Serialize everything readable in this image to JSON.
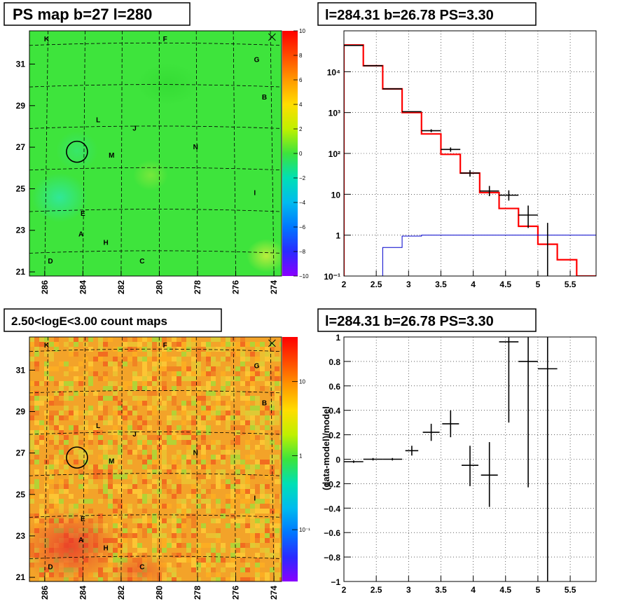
{
  "panels": {
    "ps_map": {
      "title": "PS map b=27 l=280",
      "x_ticks": [
        "286",
        "284",
        "282",
        "280",
        "278",
        "276",
        "274"
      ],
      "y_ticks": [
        "31",
        "29",
        "27",
        "25",
        "23",
        "21"
      ],
      "colorbar_ticks": [
        "10",
        "8",
        "6",
        "4",
        "2",
        "0",
        "−2",
        "−4",
        "−6",
        "−8",
        "−10"
      ],
      "source_labels": [
        "K",
        "F",
        "G",
        "B",
        "L",
        "J",
        "M",
        "N",
        "I",
        "E",
        "A",
        "H",
        "D",
        "C"
      ]
    },
    "count_map": {
      "title": "2.50<logE<3.00 count maps",
      "x_ticks": [
        "286",
        "284",
        "282",
        "280",
        "278",
        "276",
        "274"
      ],
      "y_ticks": [
        "31",
        "29",
        "27",
        "25",
        "23",
        "21"
      ],
      "colorbar_ticks": [
        "10",
        "1",
        "10⁻¹"
      ],
      "source_labels": [
        "K",
        "F",
        "G",
        "B",
        "L",
        "J",
        "M",
        "N",
        "I",
        "E",
        "A",
        "H",
        "D",
        "C"
      ]
    },
    "spectrum": {
      "title": "l=284.31 b=26.78 PS=3.30"
    },
    "residual": {
      "title": "l=284.31 b=26.78 PS=3.30",
      "ylabel": "(data-model)/model"
    }
  },
  "chart_data": [
    {
      "type": "heatmap",
      "title": "PS map b=27 l=280",
      "xlim": [
        286.8,
        273.6
      ],
      "ylim": [
        20.8,
        32.6
      ],
      "x_ticks": [
        286,
        284,
        282,
        280,
        278,
        276,
        274
      ],
      "y_ticks": [
        31,
        29,
        27,
        25,
        23,
        21
      ],
      "zlim": [
        -10,
        10
      ],
      "z_ticks": [
        10,
        8,
        6,
        4,
        2,
        0,
        -2,
        -4,
        -6,
        -8,
        -10
      ],
      "markers": [
        {
          "shape": "circle",
          "l": 284.31,
          "b": 26.78
        },
        {
          "shape": "x",
          "l": 274.1,
          "b": 32.3
        }
      ],
      "sources": [
        {
          "label": "K",
          "l": 285.9,
          "b": 32.1
        },
        {
          "label": "F",
          "l": 279.7,
          "b": 32.1
        },
        {
          "label": "G",
          "l": 274.9,
          "b": 31.1
        },
        {
          "label": "B",
          "l": 274.5,
          "b": 29.3
        },
        {
          "label": "L",
          "l": 283.2,
          "b": 28.2
        },
        {
          "label": "J",
          "l": 281.3,
          "b": 27.8
        },
        {
          "label": "M",
          "l": 282.5,
          "b": 26.5
        },
        {
          "label": "N",
          "l": 278.1,
          "b": 26.9
        },
        {
          "label": "I",
          "l": 275.0,
          "b": 24.7
        },
        {
          "label": "E",
          "l": 284.0,
          "b": 23.7
        },
        {
          "label": "A",
          "l": 284.1,
          "b": 22.7
        },
        {
          "label": "H",
          "l": 282.8,
          "b": 22.3
        },
        {
          "label": "D",
          "l": 285.7,
          "b": 21.4
        },
        {
          "label": "C",
          "l": 280.9,
          "b": 21.4
        }
      ]
    },
    {
      "type": "bar",
      "title": "l=284.31 b=26.78 PS=3.30",
      "xlim": [
        2,
        5.9
      ],
      "ylim": [
        0.1,
        100000
      ],
      "yscale": "log",
      "x_ticks": [
        2,
        2.5,
        3,
        3.5,
        4,
        4.5,
        5,
        5.5
      ],
      "y_ticks": [
        {
          "value": 0.1,
          "label": "10⁻¹"
        },
        {
          "value": 1,
          "label": "1"
        },
        {
          "value": 10,
          "label": "10"
        },
        {
          "value": 100,
          "label": "10²"
        },
        {
          "value": 1000,
          "label": "10³"
        },
        {
          "value": 10000,
          "label": "10⁴"
        }
      ],
      "grid": true,
      "series": [
        {
          "name": "",
          "style": "step",
          "color": "#ff0000",
          "bins": [
            [
              2.0,
              2.3,
              45000
            ],
            [
              2.3,
              2.6,
              14000
            ],
            [
              2.6,
              2.9,
              3800
            ],
            [
              2.9,
              3.2,
              1000
            ],
            [
              3.2,
              3.5,
              300
            ],
            [
              3.5,
              3.8,
              95
            ],
            [
              3.8,
              4.1,
              33
            ],
            [
              4.1,
              4.4,
              11
            ],
            [
              4.4,
              4.7,
              4.5
            ],
            [
              4.7,
              5.0,
              1.65
            ],
            [
              5.0,
              5.3,
              0.6
            ],
            [
              5.3,
              5.6,
              0.25
            ],
            [
              5.6,
              5.9,
              0.1
            ]
          ]
        },
        {
          "name": "",
          "style": "step",
          "color": "#0000cc",
          "bins": [
            [
              2.3,
              2.6,
              0.1
            ],
            [
              2.6,
              2.9,
              0.5
            ],
            [
              2.9,
              3.2,
              0.95
            ],
            [
              3.2,
              3.5,
              1
            ],
            [
              3.5,
              5.9,
              1
            ]
          ]
        },
        {
          "name": "",
          "style": "errorbar",
          "color": "#000000",
          "points": [
            [
              2.15,
              44000,
              0.15,
              0,
              0
            ],
            [
              2.45,
              14000,
              0.15,
              0,
              0
            ],
            [
              2.75,
              3800,
              0.15,
              0,
              0
            ],
            [
              3.05,
              1050,
              0.15,
              0,
              0
            ],
            [
              3.35,
              360,
              0.15,
              30,
              30
            ],
            [
              3.65,
              125,
              0.15,
              15,
              15
            ],
            [
              3.95,
              33,
              0.15,
              6,
              6
            ],
            [
              4.25,
              12,
              0.15,
              3,
              4
            ],
            [
              4.55,
              9.5,
              0.15,
              2.5,
              3
            ],
            [
              4.85,
              3.1,
              0.15,
              1.6,
              2.2
            ],
            [
              5.15,
              1.0,
              0.0,
              0.9,
              1.0
            ]
          ]
        }
      ]
    },
    {
      "type": "heatmap",
      "title": "2.50<logE<3.00 count maps",
      "xlim": [
        286.8,
        273.6
      ],
      "ylim": [
        20.8,
        32.6
      ],
      "x_ticks": [
        286,
        284,
        282,
        280,
        278,
        276,
        274
      ],
      "y_ticks": [
        31,
        29,
        27,
        25,
        23,
        21
      ],
      "zscale": "log",
      "z_ticks": [
        10,
        1,
        0.1
      ],
      "markers": [
        {
          "shape": "circle",
          "l": 284.31,
          "b": 26.78
        },
        {
          "shape": "x",
          "l": 274.1,
          "b": 32.3
        }
      ]
    },
    {
      "type": "scatter",
      "title": "l=284.31 b=26.78 PS=3.30",
      "xlabel": "",
      "ylabel": "(data-model)/model",
      "xlim": [
        2,
        5.9
      ],
      "ylim": [
        -1,
        1
      ],
      "x_ticks": [
        2,
        2.5,
        3,
        3.5,
        4,
        4.5,
        5,
        5.5
      ],
      "y_ticks": [
        1,
        0.8,
        0.6,
        0.4,
        0.2,
        0,
        -0.2,
        -0.4,
        -0.6,
        -0.8,
        -1
      ],
      "grid": true,
      "points": [
        {
          "x": 2.15,
          "y": -0.02,
          "xerr": 0.15,
          "ylo": 0.01,
          "yhi": 0.01
        },
        {
          "x": 2.45,
          "y": 0.0,
          "xerr": 0.15,
          "ylo": 0.01,
          "yhi": 0.01
        },
        {
          "x": 2.75,
          "y": 0.0,
          "xerr": 0.15,
          "ylo": 0.01,
          "yhi": 0.01
        },
        {
          "x": 3.05,
          "y": 0.07,
          "xerr": 0.1,
          "ylo": 0.04,
          "yhi": 0.04
        },
        {
          "x": 3.35,
          "y": 0.22,
          "xerr": 0.13,
          "ylo": 0.07,
          "yhi": 0.07
        },
        {
          "x": 3.65,
          "y": 0.29,
          "xerr": 0.13,
          "ylo": 0.11,
          "yhi": 0.11
        },
        {
          "x": 3.95,
          "y": -0.05,
          "xerr": 0.13,
          "ylo": 0.17,
          "yhi": 0.16
        },
        {
          "x": 4.25,
          "y": -0.13,
          "xerr": 0.13,
          "ylo": 0.26,
          "yhi": 0.27
        },
        {
          "x": 4.55,
          "y": 0.96,
          "xerr": 0.15,
          "ylo": 0.66,
          "yhi": 0.05
        },
        {
          "x": 4.85,
          "y": 0.8,
          "xerr": 0.15,
          "ylo": 1.03,
          "yhi": 0.2
        },
        {
          "x": 5.15,
          "y": 0.74,
          "xerr": 0.15,
          "ylo": 1.74,
          "yhi": 0.26
        }
      ]
    }
  ]
}
